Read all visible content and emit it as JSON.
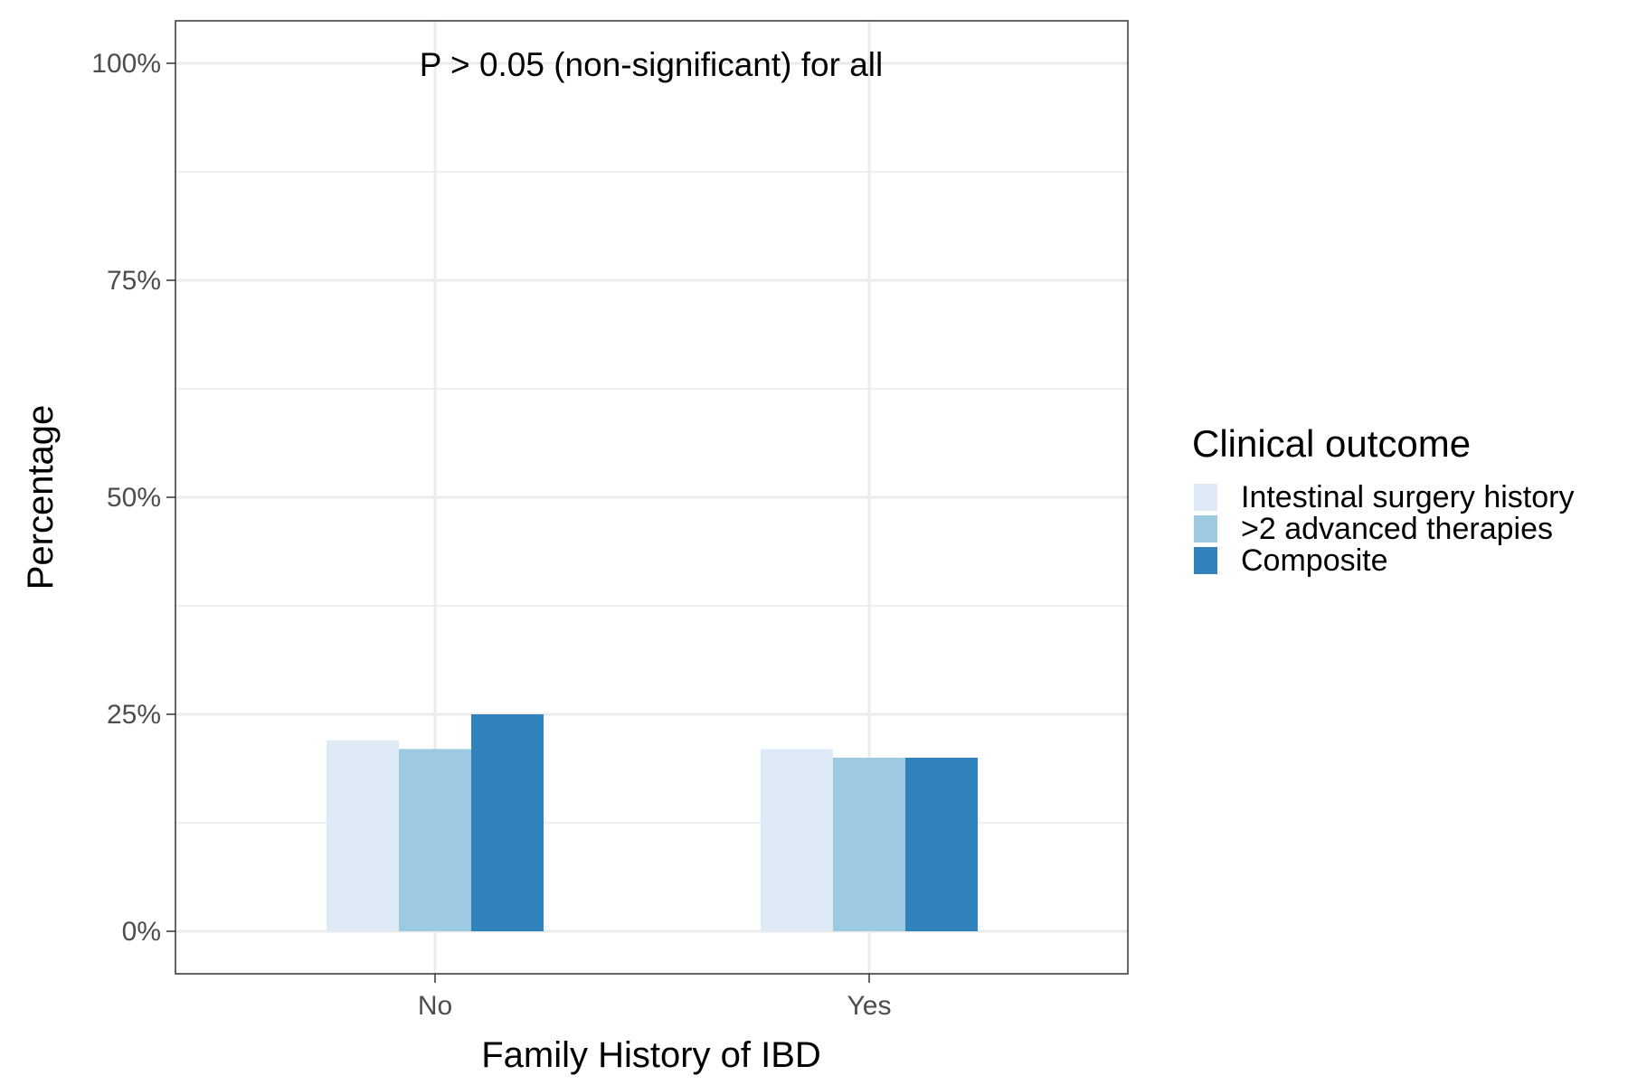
{
  "chart_data": {
    "type": "bar",
    "xlabel": "Family History of IBD",
    "ylabel": "Percentage",
    "categories": [
      "No",
      "Yes"
    ],
    "series": [
      {
        "name": "Intestinal surgery history",
        "values": [
          22,
          21
        ],
        "color": "#deebf7"
      },
      {
        "name": ">2 advanced therapies",
        "values": [
          21,
          20
        ],
        "color": "#9ecae1"
      },
      {
        "name": "Composite",
        "values": [
          25,
          20
        ],
        "color": "#3182bd"
      }
    ],
    "ylim": [
      0,
      100
    ],
    "y_ticks": [
      0,
      25,
      50,
      75,
      100
    ],
    "y_tick_labels": [
      "0%",
      "25%",
      "50%",
      "75%",
      "100%"
    ],
    "annotation": "P > 0.05 (non-significant) for all",
    "legend": {
      "title": "Clinical outcome",
      "position": "right"
    },
    "grid": true
  }
}
